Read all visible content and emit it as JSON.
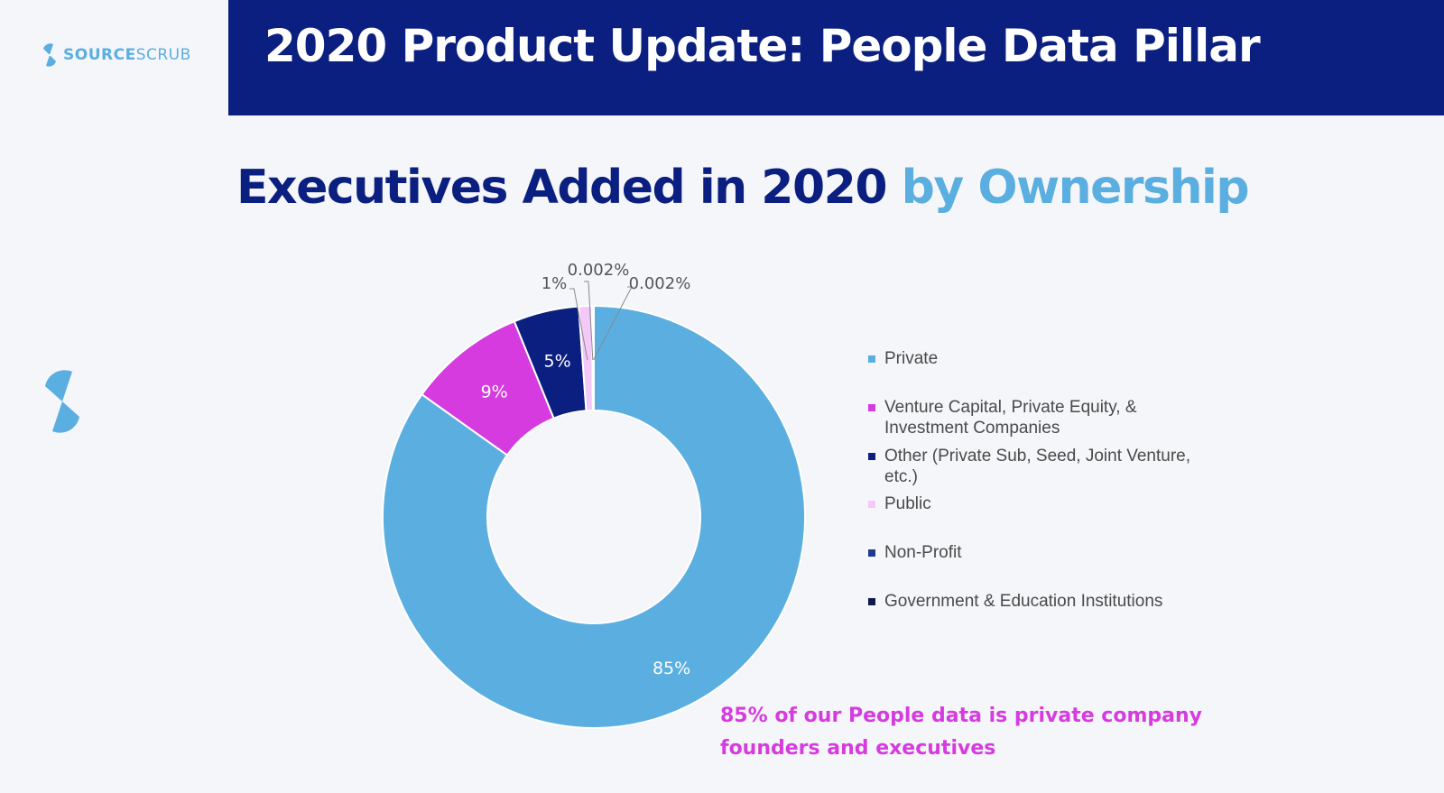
{
  "logo": {
    "text_bold": "SOURCE",
    "text_light": "SCRUB"
  },
  "header": {
    "title": "2020 Product Update: People Data Pillar"
  },
  "slide_title": {
    "main": "Executives Added in 2020 ",
    "accent": "by Ownership"
  },
  "colors": {
    "header_band": "#0b1f80",
    "title_main": "#0b1f80",
    "title_accent": "#5aaee0",
    "callout": "#d63be0"
  },
  "chart_data": {
    "type": "pie",
    "style": "donut",
    "legend_position": "right",
    "categories": [
      "Private",
      "Venture Capital, Private Equity, & Investment Companies",
      "Other (Private Sub, Seed, Joint Venture, etc.)",
      "Public",
      "Non-Profit",
      "Government & Education Institutions"
    ],
    "values": [
      85,
      9,
      5,
      1,
      0.002,
      0.002
    ],
    "data_labels": [
      "85%",
      "9%",
      "5%",
      "1%",
      "0.002%",
      "0.002%"
    ],
    "colors": [
      "#5aaee0",
      "#d63be0",
      "#0b1f80",
      "#f4c8f7",
      "#1f3a8c",
      "#0d1a4a"
    ]
  },
  "callout": {
    "line1": "85% of our People data is private company",
    "line2": "founders and executives"
  }
}
